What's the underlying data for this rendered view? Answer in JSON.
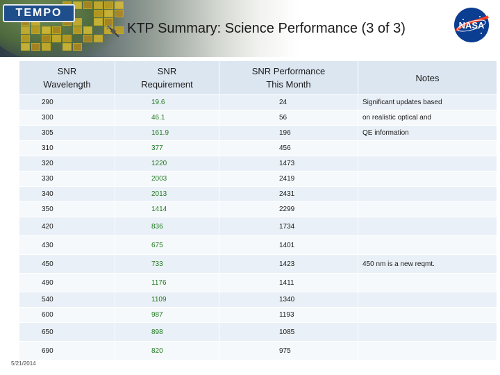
{
  "header": {
    "logo_text": "TEMPO",
    "title": "KTP Summary: Science Performance (3 of 3)",
    "agency_logo": "NASA"
  },
  "table": {
    "columns": [
      "SNR\nWavelength",
      "SNR\nRequirement",
      "SNR Performance\nThis Month",
      "Notes"
    ],
    "rows": [
      {
        "wavelength": "290",
        "requirement": "19.6",
        "performance": "24",
        "notes": "Significant updates based"
      },
      {
        "wavelength": "300",
        "requirement": "46.1",
        "performance": "56",
        "notes": "on realistic optical and"
      },
      {
        "wavelength": "305",
        "requirement": "161.9",
        "performance": "196",
        "notes": "QE information"
      },
      {
        "wavelength": "310",
        "requirement": "377",
        "performance": "456",
        "notes": ""
      },
      {
        "wavelength": "320",
        "requirement": "1220",
        "performance": "1473",
        "notes": ""
      },
      {
        "wavelength": "330",
        "requirement": "2003",
        "performance": "2419",
        "notes": ""
      },
      {
        "wavelength": "340",
        "requirement": "2013",
        "performance": "2431",
        "notes": ""
      },
      {
        "wavelength": "350",
        "requirement": "1414",
        "performance": "2299",
        "notes": ""
      },
      {
        "wavelength": "420",
        "requirement": "836",
        "performance": "1734",
        "notes": ""
      },
      {
        "wavelength": "430",
        "requirement": "675",
        "performance": "1401",
        "notes": ""
      },
      {
        "wavelength": "450",
        "requirement": "733",
        "performance": "1423",
        "notes": "450 nm is a new reqmt."
      },
      {
        "wavelength": "490",
        "requirement": "1176",
        "performance": "1411",
        "notes": ""
      },
      {
        "wavelength": "540",
        "requirement": "1109",
        "performance": "1340",
        "notes": ""
      },
      {
        "wavelength": "600",
        "requirement": "987",
        "performance": "1193",
        "notes": ""
      },
      {
        "wavelength": "650",
        "requirement": "898",
        "performance": "1085",
        "notes": ""
      },
      {
        "wavelength": "690",
        "requirement": "820",
        "performance": "975",
        "notes": ""
      }
    ]
  },
  "footer": {
    "date": "5/21/2014"
  },
  "colors": {
    "header_fill": "#dce6f1",
    "row_fill_odd": "#eaf0f7",
    "row_fill_even": "#f6f9fc",
    "requirement_text": "#1f7a1f"
  }
}
